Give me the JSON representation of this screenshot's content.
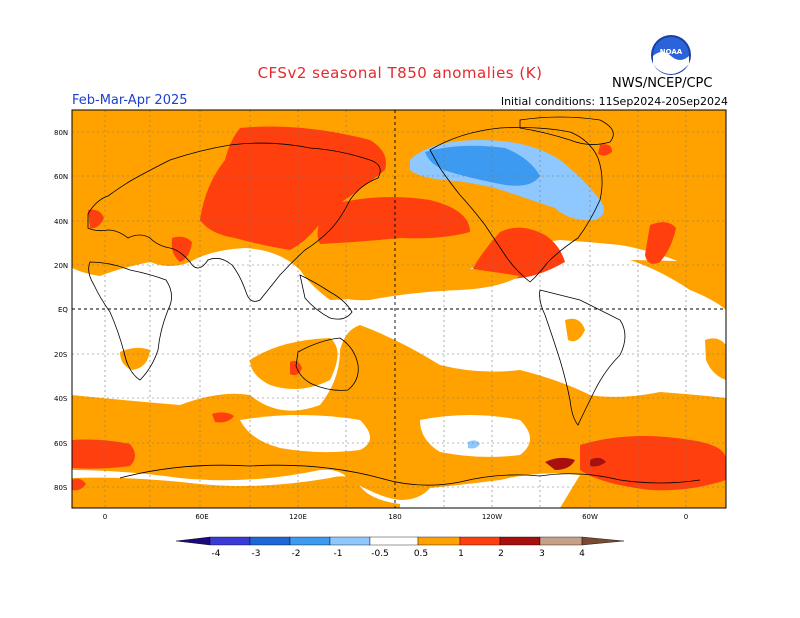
{
  "header": {
    "title": "CFSv2 seasonal T850 anomalies (K)",
    "period": "Feb-Mar-Apr 2025",
    "initial_conditions": "Initial conditions: 11Sep2024-20Sep2024",
    "agency": "NWS/NCEP/CPC",
    "logo_text": "NOAA"
  },
  "map": {
    "lat_labels": [
      "80N",
      "60N",
      "40N",
      "20N",
      "EQ",
      "20S",
      "40S",
      "60S",
      "80S"
    ],
    "lon_labels": [
      "0",
      "60E",
      "120E",
      "180",
      "120W",
      "60W",
      "0"
    ]
  },
  "colorbar": {
    "labels": [
      "-4",
      "-3",
      "-2",
      "-1",
      "-0.5",
      "0.5",
      "1",
      "2",
      "3",
      "4"
    ],
    "colors": {
      "below_-4": "#1a0a7a",
      "-4_-3": "#3a3ad8",
      "-3_-2": "#1e66d8",
      "-2_-1": "#3c9af0",
      "-1_-0.5": "#8ec8ff",
      "-0.5_0.5": "#ffffff",
      "0.5_1": "#ffa200",
      "1_2": "#ff3f0e",
      "2_3": "#a80f0f",
      "3_4": "#c8a08a",
      "above_4": "#7a4a30"
    }
  }
}
